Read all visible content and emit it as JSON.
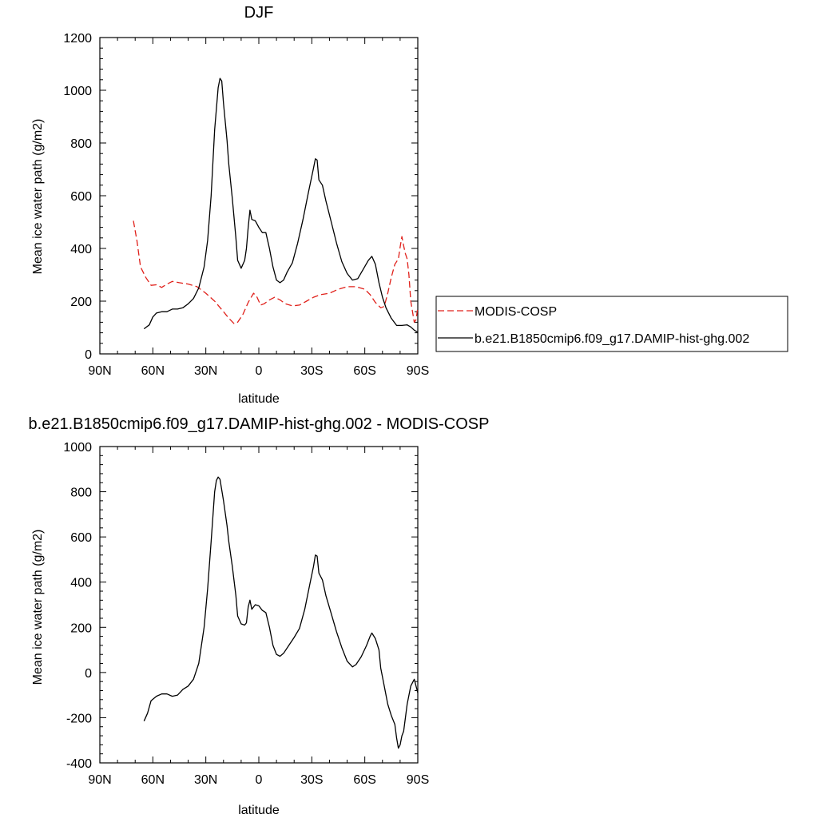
{
  "colors": {
    "model": "#000000",
    "obs": "#e0201a"
  },
  "chart_data": [
    {
      "type": "line",
      "title": "DJF",
      "xlabel": "latitude",
      "ylabel": "Mean ice water path (g/m2)",
      "xlim": [
        90,
        -90
      ],
      "ylim": [
        0,
        1200
      ],
      "xticks": [
        {
          "value": 90,
          "label": "90N"
        },
        {
          "value": 60,
          "label": "60N"
        },
        {
          "value": 30,
          "label": "30N"
        },
        {
          "value": 0,
          "label": "0"
        },
        {
          "value": -30,
          "label": "30S"
        },
        {
          "value": -60,
          "label": "60S"
        },
        {
          "value": -90,
          "label": "90S"
        }
      ],
      "yticks": [
        {
          "value": 0,
          "label": "0"
        },
        {
          "value": 200,
          "label": "200"
        },
        {
          "value": 400,
          "label": "400"
        },
        {
          "value": 600,
          "label": "600"
        },
        {
          "value": 800,
          "label": "800"
        },
        {
          "value": 1000,
          "label": "1000"
        },
        {
          "value": 1200,
          "label": "1200"
        }
      ],
      "legend": {
        "placement": "right"
      },
      "series": [
        {
          "name": "MODIS-COSP",
          "color": "#e0201a",
          "style": "dashed",
          "points": [
            [
              71,
              505
            ],
            [
              69,
              430
            ],
            [
              67,
              330
            ],
            [
              64,
              290
            ],
            [
              61,
              260
            ],
            [
              58,
              262
            ],
            [
              55,
              252
            ],
            [
              52,
              265
            ],
            [
              49,
              275
            ],
            [
              45,
              270
            ],
            [
              40,
              265
            ],
            [
              35,
              255
            ],
            [
              30,
              230
            ],
            [
              25,
              200
            ],
            [
              20,
              160
            ],
            [
              17,
              135
            ],
            [
              14,
              115
            ],
            [
              12,
              120
            ],
            [
              9,
              150
            ],
            [
              6,
              195
            ],
            [
              3,
              230
            ],
            [
              1,
              215
            ],
            [
              -1,
              185
            ],
            [
              -3,
              190
            ],
            [
              -6,
              205
            ],
            [
              -9,
              215
            ],
            [
              -12,
              205
            ],
            [
              -15,
              190
            ],
            [
              -19,
              182
            ],
            [
              -23,
              185
            ],
            [
              -27,
              200
            ],
            [
              -31,
              215
            ],
            [
              -35,
              225
            ],
            [
              -40,
              230
            ],
            [
              -45,
              245
            ],
            [
              -50,
              255
            ],
            [
              -55,
              255
            ],
            [
              -60,
              245
            ],
            [
              -63,
              225
            ],
            [
              -66,
              195
            ],
            [
              -69,
              175
            ],
            [
              -71,
              180
            ],
            [
              -73,
              230
            ],
            [
              -75,
              290
            ],
            [
              -77,
              340
            ],
            [
              -79,
              360
            ],
            [
              -80,
              405
            ],
            [
              -81,
              445
            ],
            [
              -82,
              410
            ],
            [
              -83,
              380
            ],
            [
              -84,
              360
            ],
            [
              -85,
              300
            ],
            [
              -86,
              200
            ],
            [
              -88,
              120
            ],
            [
              -89,
              130
            ],
            [
              -90,
              175
            ]
          ]
        },
        {
          "name": "b.e21.B1850cmip6.f09_g17.DAMIP-hist-ghg.002",
          "color": "#000000",
          "style": "solid",
          "points": [
            [
              65,
              95
            ],
            [
              62,
              110
            ],
            [
              60,
              140
            ],
            [
              58,
              155
            ],
            [
              55,
              160
            ],
            [
              52,
              160
            ],
            [
              49,
              170
            ],
            [
              46,
              170
            ],
            [
              43,
              175
            ],
            [
              40,
              190
            ],
            [
              37,
              210
            ],
            [
              34,
              250
            ],
            [
              31,
              330
            ],
            [
              29,
              430
            ],
            [
              27,
              600
            ],
            [
              25,
              850
            ],
            [
              23,
              1010
            ],
            [
              22,
              1045
            ],
            [
              21,
              1035
            ],
            [
              20,
              950
            ],
            [
              18,
              810
            ],
            [
              17,
              720
            ],
            [
              15,
              590
            ],
            [
              13,
              440
            ],
            [
              12,
              355
            ],
            [
              10,
              325
            ],
            [
              8,
              355
            ],
            [
              7,
              400
            ],
            [
              6,
              480
            ],
            [
              5,
              545
            ],
            [
              4,
              510
            ],
            [
              2,
              505
            ],
            [
              0,
              480
            ],
            [
              -2,
              460
            ],
            [
              -4,
              460
            ],
            [
              -6,
              400
            ],
            [
              -8,
              330
            ],
            [
              -10,
              280
            ],
            [
              -12,
              270
            ],
            [
              -14,
              280
            ],
            [
              -16,
              310
            ],
            [
              -19,
              345
            ],
            [
              -22,
              420
            ],
            [
              -25,
              510
            ],
            [
              -28,
              610
            ],
            [
              -31,
              705
            ],
            [
              -32,
              740
            ],
            [
              -33,
              735
            ],
            [
              -34,
              660
            ],
            [
              -36,
              640
            ],
            [
              -38,
              580
            ],
            [
              -41,
              500
            ],
            [
              -44,
              420
            ],
            [
              -47,
              350
            ],
            [
              -50,
              305
            ],
            [
              -53,
              280
            ],
            [
              -56,
              285
            ],
            [
              -59,
              320
            ],
            [
              -62,
              355
            ],
            [
              -64,
              370
            ],
            [
              -66,
              340
            ],
            [
              -68,
              270
            ],
            [
              -70,
              215
            ],
            [
              -72,
              175
            ],
            [
              -75,
              135
            ],
            [
              -78,
              108
            ],
            [
              -81,
              108
            ],
            [
              -84,
              110
            ],
            [
              -86,
              102
            ],
            [
              -88,
              90
            ],
            [
              -90,
              82
            ]
          ]
        }
      ]
    },
    {
      "type": "line",
      "title": "b.e21.B1850cmip6.f09_g17.DAMIP-hist-ghg.002 - MODIS-COSP",
      "xlabel": "latitude",
      "ylabel": "Mean ice water path (g/m2)",
      "xlim": [
        90,
        -90
      ],
      "ylim": [
        -400,
        1000
      ],
      "xticks": [
        {
          "value": 90,
          "label": "90N"
        },
        {
          "value": 60,
          "label": "60N"
        },
        {
          "value": 30,
          "label": "30N"
        },
        {
          "value": 0,
          "label": "0"
        },
        {
          "value": -30,
          "label": "30S"
        },
        {
          "value": -60,
          "label": "60S"
        },
        {
          "value": -90,
          "label": "90S"
        }
      ],
      "yticks": [
        {
          "value": -400,
          "label": "-400"
        },
        {
          "value": -200,
          "label": "-200"
        },
        {
          "value": 0,
          "label": "0"
        },
        {
          "value": 200,
          "label": "200"
        },
        {
          "value": 400,
          "label": "400"
        },
        {
          "value": 600,
          "label": "600"
        },
        {
          "value": 800,
          "label": "800"
        },
        {
          "value": 1000,
          "label": "1000"
        }
      ],
      "series": [
        {
          "color": "#000000",
          "style": "solid",
          "points": [
            [
              65,
              -215
            ],
            [
              63,
              -180
            ],
            [
              61,
              -125
            ],
            [
              58,
              -105
            ],
            [
              55,
              -95
            ],
            [
              52,
              -95
            ],
            [
              49,
              -105
            ],
            [
              46,
              -100
            ],
            [
              43,
              -75
            ],
            [
              40,
              -60
            ],
            [
              37,
              -30
            ],
            [
              34,
              40
            ],
            [
              31,
              200
            ],
            [
              29,
              370
            ],
            [
              27,
              580
            ],
            [
              25,
              800
            ],
            [
              24,
              850
            ],
            [
              23,
              865
            ],
            [
              22,
              855
            ],
            [
              20,
              760
            ],
            [
              18,
              650
            ],
            [
              17,
              580
            ],
            [
              15,
              470
            ],
            [
              13,
              340
            ],
            [
              12,
              250
            ],
            [
              10,
              215
            ],
            [
              8,
              210
            ],
            [
              7,
              220
            ],
            [
              6,
              290
            ],
            [
              5,
              320
            ],
            [
              4,
              280
            ],
            [
              2,
              300
            ],
            [
              0,
              295
            ],
            [
              -2,
              275
            ],
            [
              -4,
              265
            ],
            [
              -6,
              200
            ],
            [
              -8,
              120
            ],
            [
              -10,
              80
            ],
            [
              -12,
              72
            ],
            [
              -14,
              85
            ],
            [
              -17,
              120
            ],
            [
              -20,
              155
            ],
            [
              -23,
              195
            ],
            [
              -26,
              280
            ],
            [
              -29,
              395
            ],
            [
              -31,
              470
            ],
            [
              -32,
              520
            ],
            [
              -33,
              515
            ],
            [
              -34,
              440
            ],
            [
              -36,
              410
            ],
            [
              -38,
              340
            ],
            [
              -41,
              260
            ],
            [
              -44,
              180
            ],
            [
              -47,
              110
            ],
            [
              -50,
              50
            ],
            [
              -53,
              25
            ],
            [
              -55,
              35
            ],
            [
              -58,
              70
            ],
            [
              -61,
              120
            ],
            [
              -63,
              160
            ],
            [
              -64,
              175
            ],
            [
              -66,
              150
            ],
            [
              -68,
              100
            ],
            [
              -69,
              20
            ],
            [
              -71,
              -60
            ],
            [
              -73,
              -140
            ],
            [
              -75,
              -190
            ],
            [
              -77,
              -230
            ],
            [
              -78,
              -290
            ],
            [
              -79,
              -335
            ],
            [
              -80,
              -320
            ],
            [
              -81,
              -280
            ],
            [
              -82,
              -260
            ],
            [
              -84,
              -140
            ],
            [
              -86,
              -60
            ],
            [
              -88,
              -30
            ],
            [
              -90,
              -90
            ]
          ]
        }
      ]
    }
  ]
}
